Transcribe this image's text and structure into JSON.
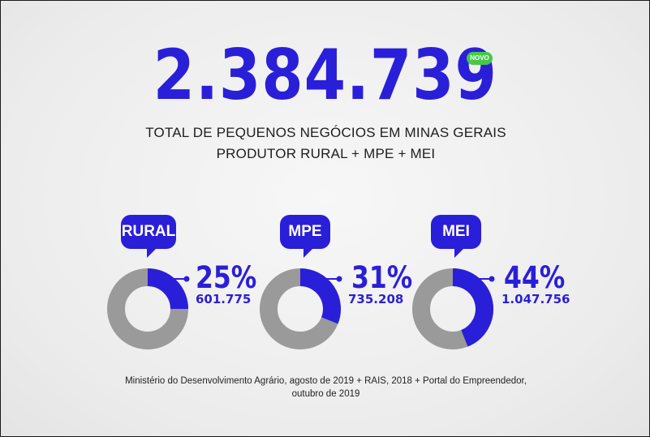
{
  "headline": {
    "total": "2.384.739",
    "badge": "NOVO",
    "line1": "TOTAL DE PEQUENOS NEGÓCIOS EM MINAS GERAIS",
    "line2": "PRODUTOR RURAL + MPE + MEI"
  },
  "segments": [
    {
      "label": "RURAL",
      "percent_text": "25%",
      "count_text": "601.775",
      "share": 0.25
    },
    {
      "label": "MPE",
      "percent_text": "31%",
      "count_text": "735.208",
      "share": 0.31
    },
    {
      "label": "MEI",
      "percent_text": "44%",
      "count_text": "1.047.756",
      "share": 0.44
    }
  ],
  "source": {
    "line1": "Ministério do Desenvolvimento Agrário, agosto de 2019 + RAIS, 2018 + Portal do Empreendedor,",
    "line2": "outubro de  2019"
  },
  "colors": {
    "accent": "#2a1fd8",
    "ring_gray": "#9a9a9a",
    "badge_green": "#46c947"
  }
}
